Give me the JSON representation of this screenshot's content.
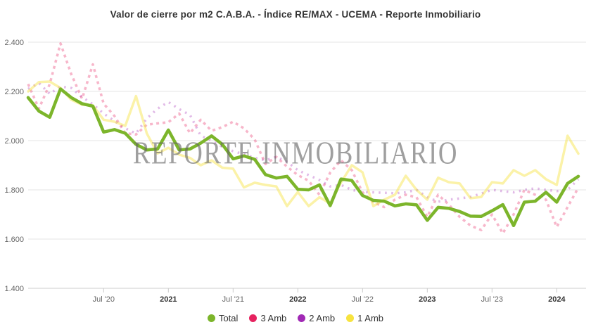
{
  "title": "Valor de cierre por m2 C.A.B.A. - Índice RE/MAX - UCEMA - Reporte Inmobiliario",
  "watermark": "REPORTE INMOBILIARIO",
  "colors": {
    "title_text": "#333333",
    "axis_line": "#cccccc",
    "gridline": "#e6e6e6",
    "tick_label": "#666666",
    "total_green": "#7CB52B",
    "amb3_pink": "#E6225F",
    "amb2_purple": "#A129B5",
    "amb1_yellow": "#F7E33F"
  },
  "chart_data": {
    "type": "line",
    "title": "Valor de cierre por m2 C.A.B.A. - Índice RE/MAX - UCEMA - Reporte Inmobiliario",
    "xlabel": "",
    "ylabel": "",
    "ylim": [
      1400,
      2400
    ],
    "grid": true,
    "legend_position": "bottom",
    "x": [
      "2019-12",
      "2020-01",
      "2020-02",
      "2020-03",
      "2020-04",
      "2020-05",
      "2020-06",
      "2020-07",
      "2020-08",
      "2020-09",
      "2020-10",
      "2020-11",
      "2020-12",
      "2021-01",
      "2021-02",
      "2021-03",
      "2021-04",
      "2021-05",
      "2021-06",
      "2021-07",
      "2021-08",
      "2021-09",
      "2021-10",
      "2021-11",
      "2021-12",
      "2022-01",
      "2022-02",
      "2022-03",
      "2022-04",
      "2022-05",
      "2022-06",
      "2022-07",
      "2022-08",
      "2022-09",
      "2022-10",
      "2022-11",
      "2022-12",
      "2023-01",
      "2023-02",
      "2023-03",
      "2023-04",
      "2023-05",
      "2023-06",
      "2023-07",
      "2023-08",
      "2023-09",
      "2023-10",
      "2023-11",
      "2023-12",
      "2024-01",
      "2024-02",
      "2024-03"
    ],
    "y_ticks": [
      {
        "label": "2.400",
        "value": 2400
      },
      {
        "label": "2.200",
        "value": 2200
      },
      {
        "label": "2.000",
        "value": 2000
      },
      {
        "label": "1.800",
        "value": 1800
      },
      {
        "label": "1.600",
        "value": 1600
      },
      {
        "label": "1.400",
        "value": 1400
      }
    ],
    "x_ticks": [
      {
        "label": "Jul '20",
        "index": 7,
        "bold": false
      },
      {
        "label": "2021",
        "index": 13,
        "bold": true
      },
      {
        "label": "Jul '21",
        "index": 19,
        "bold": false
      },
      {
        "label": "2022",
        "index": 25,
        "bold": true
      },
      {
        "label": "Jul '22",
        "index": 31,
        "bold": false
      },
      {
        "label": "2023",
        "index": 37,
        "bold": true
      },
      {
        "label": "Jul '23",
        "index": 43,
        "bold": false
      },
      {
        "label": "2024",
        "index": 49,
        "bold": true
      }
    ],
    "series": [
      {
        "name": "Total",
        "color": "#7CB52B",
        "line_opacity": 1,
        "width": 4.5,
        "dash": null,
        "values": [
          2175,
          2120,
          2095,
          2210,
          2175,
          2150,
          2140,
          2035,
          2045,
          2030,
          1985,
          1962,
          1966,
          2043,
          1962,
          1966,
          1990,
          2019,
          1985,
          1926,
          1938,
          1924,
          1862,
          1848,
          1855,
          1802,
          1800,
          1820,
          1736,
          1844,
          1838,
          1777,
          1757,
          1754,
          1735,
          1743,
          1739,
          1676,
          1729,
          1725,
          1712,
          1693,
          1692,
          1715,
          1740,
          1655,
          1750,
          1754,
          1790,
          1750,
          1826,
          1855
        ]
      },
      {
        "name": "3 Amb",
        "color": "#E6225F",
        "line_opacity": 0.33,
        "width": 3.5,
        "dash": "4,5",
        "values": [
          2230,
          2130,
          2230,
          2395,
          2270,
          2170,
          2310,
          2150,
          2100,
          2030,
          2025,
          2065,
          2070,
          2075,
          2110,
          2030,
          2085,
          2040,
          2055,
          2077,
          2050,
          2005,
          1905,
          1934,
          1894,
          1860,
          1837,
          1780,
          1870,
          1920,
          1880,
          1790,
          1750,
          1730,
          1760,
          1780,
          1770,
          1690,
          1780,
          1740,
          1690,
          1655,
          1637,
          1700,
          1623,
          1700,
          1800,
          1780,
          1760,
          1649,
          1730,
          1809
        ]
      },
      {
        "name": "2 Amb",
        "color": "#A129B5",
        "line_opacity": 0.32,
        "width": 3.5,
        "dash": "2.5,6.5",
        "values": [
          2210,
          2234,
          2190,
          2220,
          2214,
          2177,
          2148,
          2110,
          2080,
          2050,
          2029,
          2090,
          2130,
          2157,
          2128,
          2105,
          2020,
          2000,
          1975,
          1957,
          1945,
          1930,
          1920,
          1934,
          1914,
          1880,
          1860,
          1840,
          1814,
          1820,
          1800,
          1791,
          1790,
          1788,
          1786,
          1790,
          1800,
          1770,
          1752,
          1760,
          1765,
          1771,
          1785,
          1800,
          1795,
          1790,
          1800,
          1806,
          1800,
          1795,
          1800,
          1843
        ]
      },
      {
        "name": "1 Amb",
        "color": "#F7E33F",
        "line_opacity": 0.45,
        "width": 3.5,
        "dash": null,
        "values": [
          2200,
          2238,
          2240,
          2214,
          2166,
          2146,
          2143,
          2085,
          2077,
          2060,
          2181,
          2029,
          1948,
          1971,
          1943,
          1930,
          1900,
          1920,
          1890,
          1886,
          1810,
          1829,
          1820,
          1814,
          1734,
          1791,
          1734,
          1770,
          1745,
          1830,
          1900,
          1871,
          1734,
          1760,
          1780,
          1857,
          1800,
          1760,
          1849,
          1831,
          1826,
          1766,
          1771,
          1831,
          1826,
          1880,
          1857,
          1880,
          1843,
          1820,
          2020,
          1947
        ]
      }
    ]
  },
  "legend": {
    "items": [
      "Total",
      "3 Amb",
      "2 Amb",
      "1 Amb"
    ]
  }
}
